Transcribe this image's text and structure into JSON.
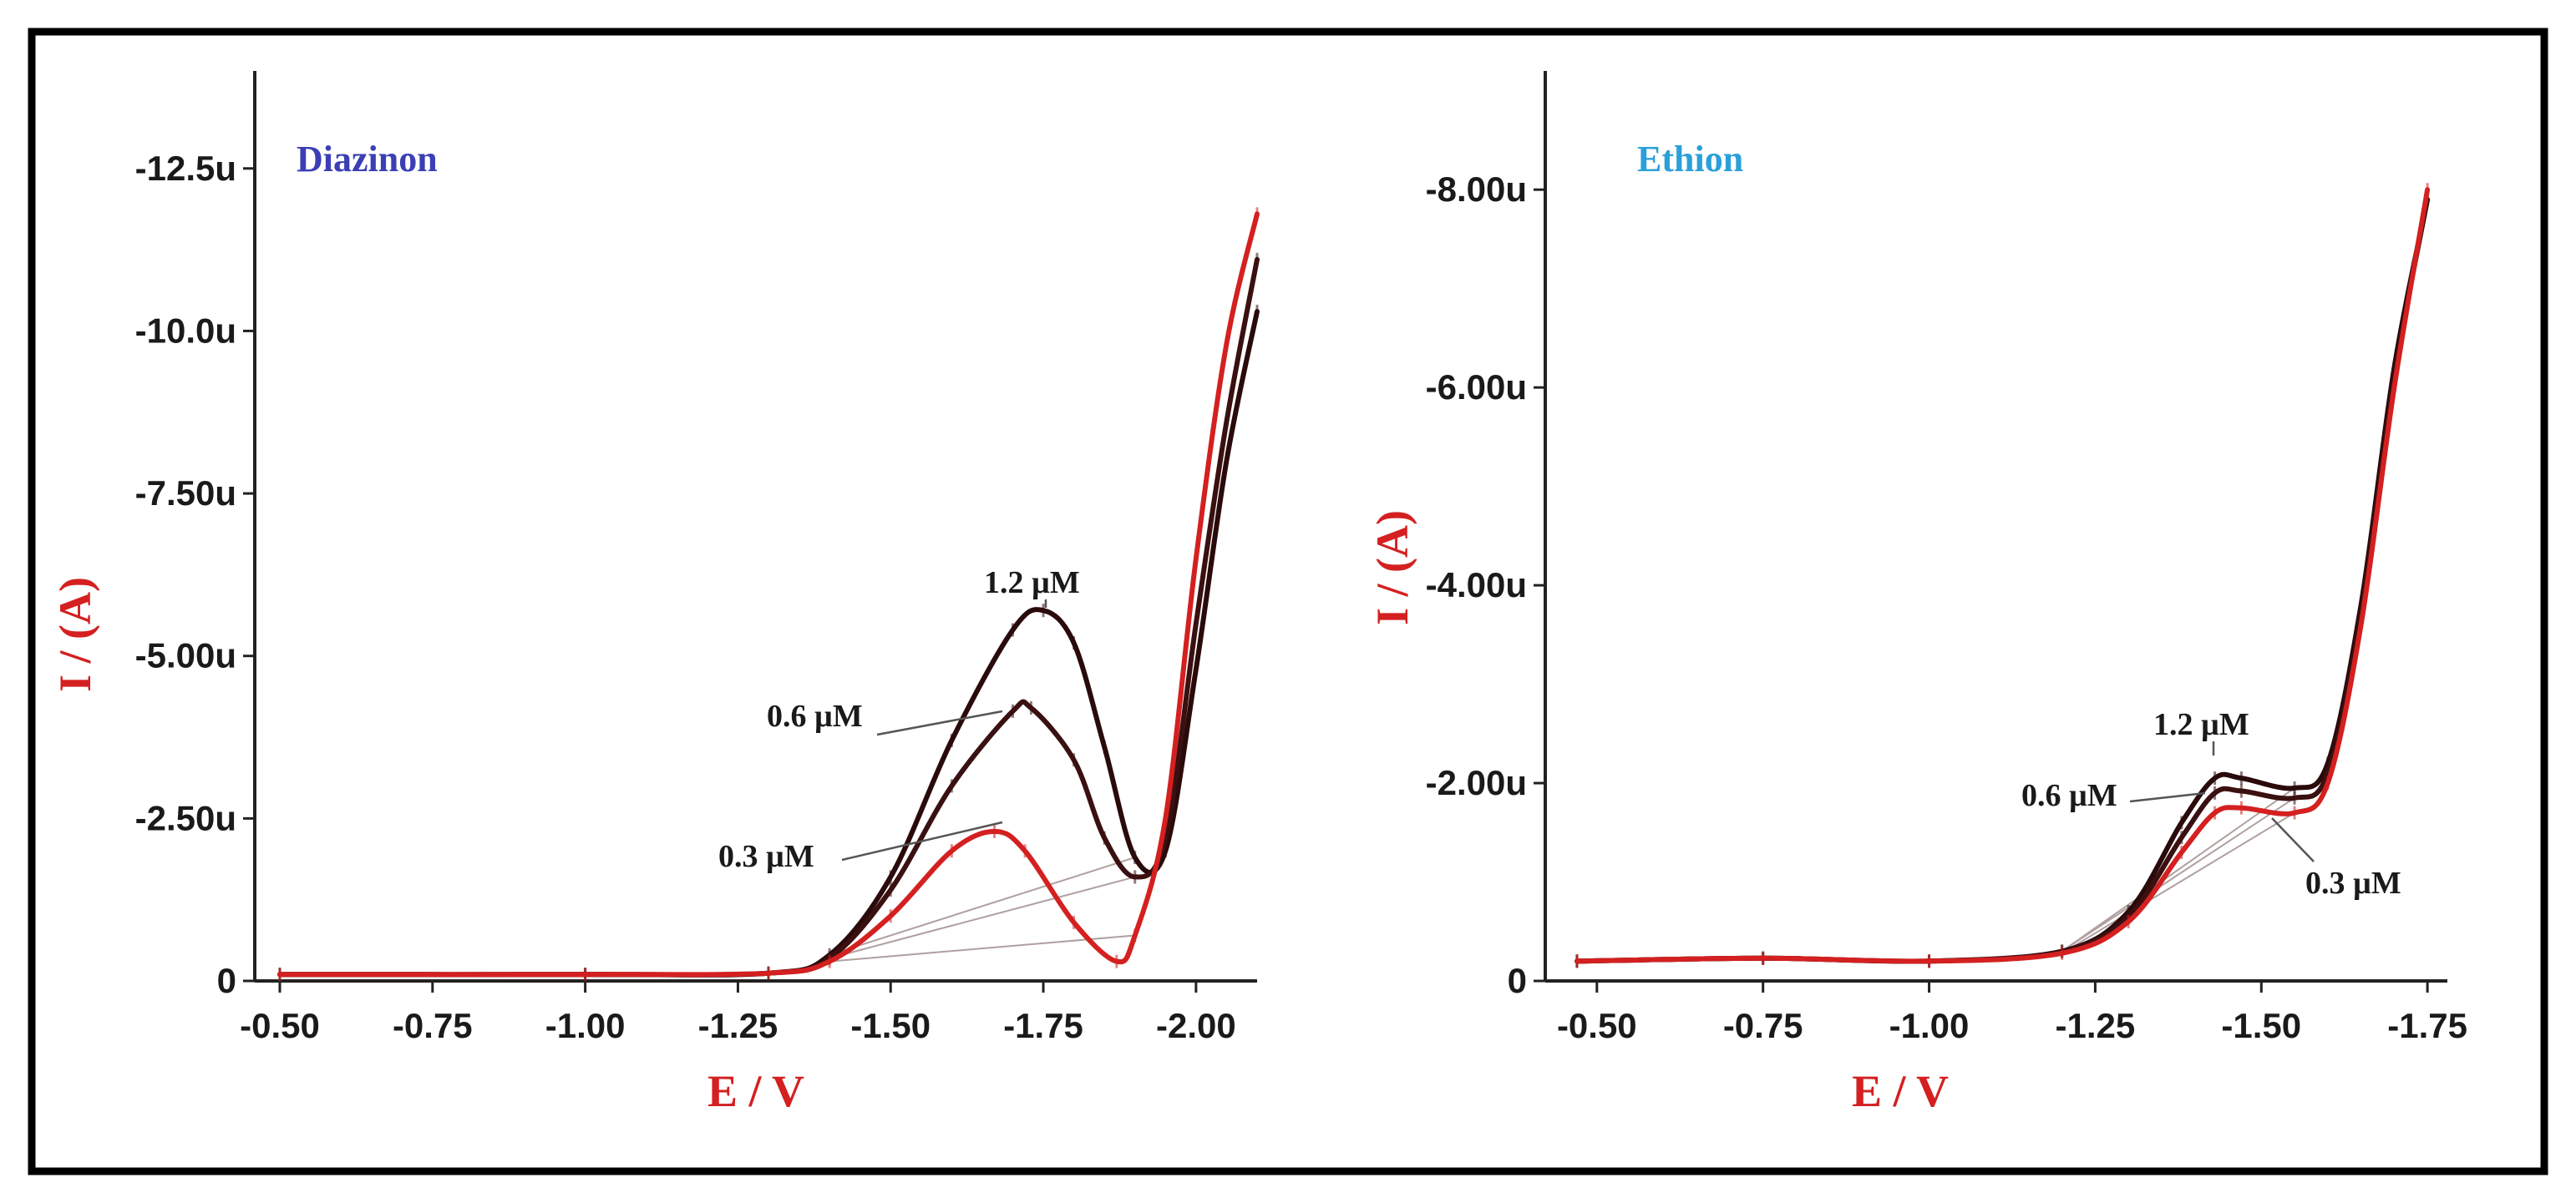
{
  "chart_data": [
    {
      "type": "line",
      "title": "Diazinon",
      "title_color": "#3b3fb5",
      "xlabel": "E / V",
      "ylabel": "I / (A)",
      "xlim": [
        -0.5,
        -2.1
      ],
      "ylim": [
        0,
        -14.0
      ],
      "x_ticks": [
        -0.5,
        -0.75,
        -1.0,
        -1.25,
        -1.5,
        -1.75,
        -2.0
      ],
      "x_tick_labels": [
        "-0.50",
        "-0.75",
        "-1.00",
        "-1.25",
        "-1.50",
        "-1.75",
        "-2.00"
      ],
      "y_ticks": [
        0,
        -2.5,
        -5.0,
        -7.5,
        -10.0,
        -12.5
      ],
      "y_tick_labels": [
        "0",
        "-2.50u",
        "-5.00u",
        "-7.50u",
        "-10.0u",
        "-12.5u"
      ],
      "series": [
        {
          "label": "1.2 µM",
          "color": "#2a0a0a",
          "x": [
            -0.5,
            -1.0,
            -1.3,
            -1.4,
            -1.5,
            -1.6,
            -1.7,
            -1.75,
            -1.8,
            -1.85,
            -1.9,
            -1.95,
            -2.0,
            -2.05,
            -2.1
          ],
          "y": [
            -0.1,
            -0.1,
            -0.12,
            -0.4,
            -1.6,
            -3.7,
            -5.4,
            -5.7,
            -5.2,
            -3.6,
            -1.9,
            -2.0,
            -4.8,
            -8.0,
            -10.3
          ]
        },
        {
          "label": "0.6 µM",
          "color": "#3a1010",
          "x": [
            -0.5,
            -1.0,
            -1.3,
            -1.4,
            -1.5,
            -1.6,
            -1.7,
            -1.73,
            -1.8,
            -1.85,
            -1.9,
            -1.95,
            -2.0,
            -2.05,
            -2.1
          ],
          "y": [
            -0.1,
            -0.1,
            -0.12,
            -0.35,
            -1.4,
            -3.0,
            -4.15,
            -4.2,
            -3.4,
            -2.2,
            -1.6,
            -2.2,
            -5.5,
            -8.6,
            -11.1
          ]
        },
        {
          "label": "0.3 µM",
          "color": "#d42020",
          "x": [
            -0.5,
            -1.0,
            -1.3,
            -1.4,
            -1.5,
            -1.6,
            -1.67,
            -1.72,
            -1.8,
            -1.87,
            -1.9,
            -1.95,
            -2.0,
            -2.05,
            -2.1
          ],
          "y": [
            -0.1,
            -0.1,
            -0.12,
            -0.3,
            -1.0,
            -2.0,
            -2.3,
            -2.0,
            -0.9,
            -0.3,
            -0.7,
            -2.5,
            -6.5,
            -9.8,
            -11.8
          ]
        }
      ],
      "annotations": [
        "1.2 µM",
        "0.6 µM",
        "0.3 µM"
      ]
    },
    {
      "type": "line",
      "title": "Ethion",
      "title_color": "#2aa0d8",
      "xlabel": "E / V",
      "ylabel": "I / (A)",
      "xlim": [
        -0.46,
        -1.78
      ],
      "ylim": [
        0,
        -9.2
      ],
      "x_ticks": [
        -0.5,
        -0.75,
        -1.0,
        -1.25,
        -1.5,
        -1.75
      ],
      "x_tick_labels": [
        "-0.50",
        "-0.75",
        "-1.00",
        "-1.25",
        "-1.50",
        "-1.75"
      ],
      "y_ticks": [
        0,
        -2.0,
        -4.0,
        -6.0,
        -8.0
      ],
      "y_tick_labels": [
        "0",
        "-2.00u",
        "-4.00u",
        "-6.00u",
        "-8.00u"
      ],
      "series": [
        {
          "label": "1.2 µM",
          "color": "#2a0a0a",
          "x": [
            -0.47,
            -0.75,
            -1.0,
            -1.2,
            -1.3,
            -1.38,
            -1.43,
            -1.47,
            -1.55,
            -1.6,
            -1.65,
            -1.7,
            -1.75
          ],
          "y": [
            -0.2,
            -0.23,
            -0.2,
            -0.3,
            -0.7,
            -1.6,
            -2.05,
            -2.05,
            -1.95,
            -2.2,
            -3.8,
            -6.2,
            -7.9
          ]
        },
        {
          "label": "0.6 µM",
          "color": "#3a1010",
          "x": [
            -0.47,
            -0.75,
            -1.0,
            -1.2,
            -1.3,
            -1.38,
            -1.43,
            -1.47,
            -1.55,
            -1.6,
            -1.65,
            -1.7,
            -1.75
          ],
          "y": [
            -0.2,
            -0.23,
            -0.2,
            -0.3,
            -0.65,
            -1.45,
            -1.9,
            -1.92,
            -1.85,
            -2.1,
            -3.7,
            -6.1,
            -7.9
          ]
        },
        {
          "label": "0.3 µM",
          "color": "#d42020",
          "x": [
            -0.47,
            -0.75,
            -1.0,
            -1.2,
            -1.3,
            -1.38,
            -1.43,
            -1.47,
            -1.55,
            -1.6,
            -1.65,
            -1.7,
            -1.75
          ],
          "y": [
            -0.2,
            -0.23,
            -0.2,
            -0.28,
            -0.6,
            -1.3,
            -1.7,
            -1.75,
            -1.7,
            -2.0,
            -3.6,
            -6.0,
            -8.0
          ]
        }
      ],
      "annotations": [
        "1.2 µM",
        "0.6 µM",
        "0.3 µM"
      ]
    }
  ]
}
